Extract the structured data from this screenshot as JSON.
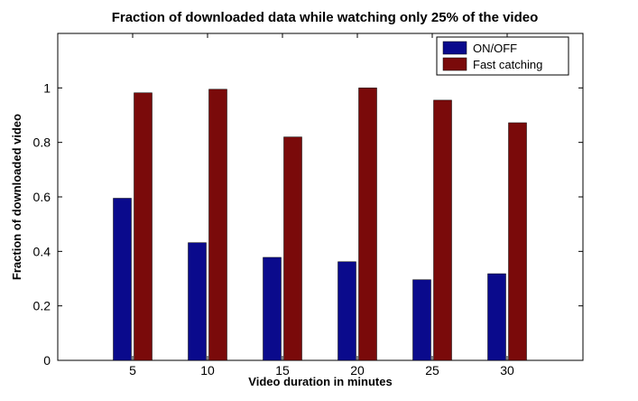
{
  "chart_data": {
    "type": "bar",
    "title": "Fraction of downloaded data while watching only 25% of the video",
    "xlabel": "Video duration in minutes",
    "ylabel": "Fraction of downloaded video",
    "categories": [
      "5",
      "10",
      "15",
      "20",
      "25",
      "30"
    ],
    "series": [
      {
        "name": "ON/OFF",
        "color": "#0a0a8c",
        "values": [
          0.595,
          0.432,
          0.378,
          0.362,
          0.296,
          0.318
        ]
      },
      {
        "name": "Fast catching",
        "color": "#7a0a0a",
        "values": [
          0.982,
          0.995,
          0.82,
          1.0,
          0.955,
          0.872
        ]
      }
    ],
    "ylim": [
      0,
      1.2
    ],
    "yticks": [
      "0",
      "0.2",
      "0.4",
      "0.6",
      "0.8",
      "1"
    ],
    "legend": "top-right",
    "grid": false
  }
}
